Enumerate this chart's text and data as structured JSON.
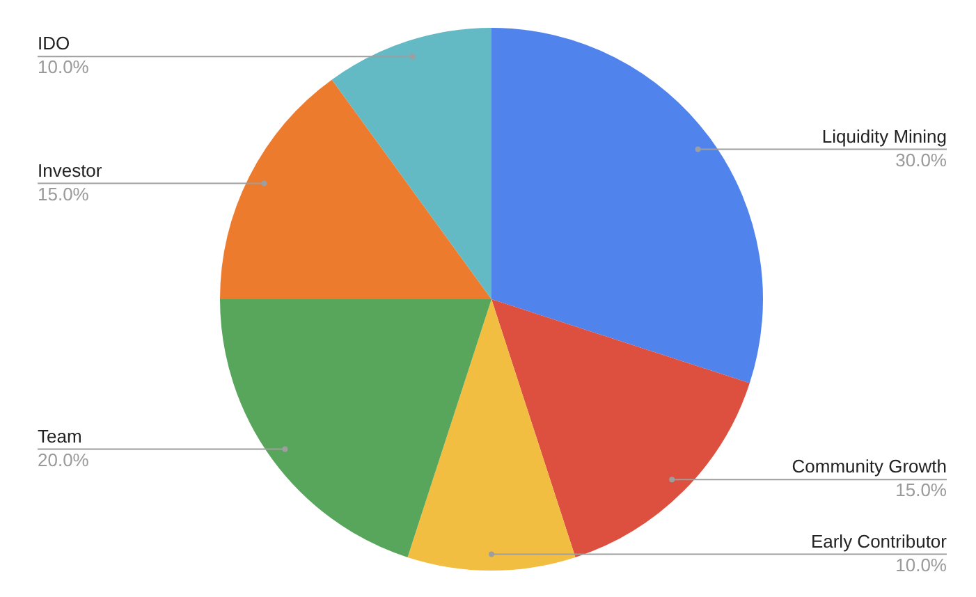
{
  "chart_data": {
    "type": "pie",
    "categories": [
      "Liquidity Mining",
      "Community Growth",
      "Early Contributor",
      "Team",
      "Investor",
      "IDO"
    ],
    "values": [
      30,
      15,
      10,
      20,
      15,
      10
    ],
    "colors": [
      "#5083ec",
      "#dd4f3f",
      "#f2be42",
      "#58a65c",
      "#ed7b2e",
      "#63b9c4"
    ],
    "value_labels": [
      "30.0%",
      "15.0%",
      "10.0%",
      "20.0%",
      "15.0%",
      "10.0%"
    ]
  }
}
